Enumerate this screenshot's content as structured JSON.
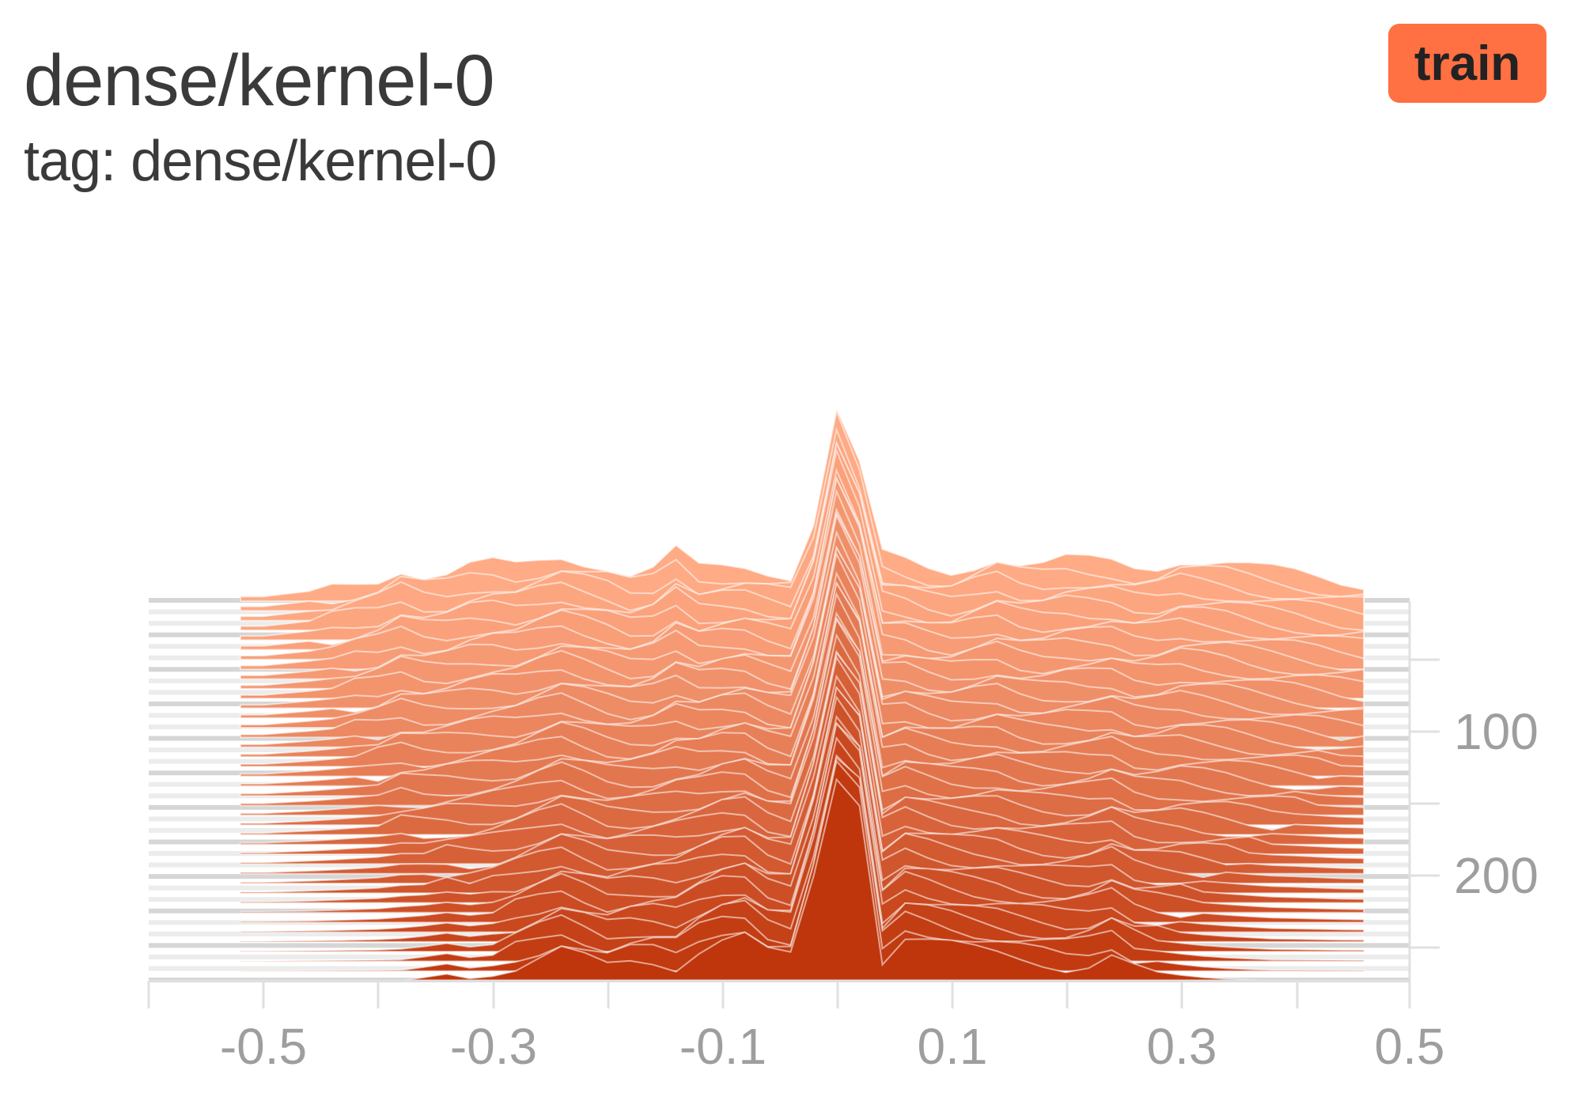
{
  "card": {
    "title": "dense/kernel-0",
    "tag": "tag: dense/kernel-0",
    "run_label": "train",
    "run_color": "#ff7043"
  },
  "chart_data": {
    "type": "area",
    "mode": "offset-histogram",
    "x_ticks": [
      "-0.5",
      "-0.3",
      "-0.1",
      "0.1",
      "0.3",
      "0.5"
    ],
    "y_ticks": [
      "100",
      "200"
    ],
    "xlim": [
      -0.6,
      0.5
    ],
    "step_range": [
      0,
      260
    ],
    "color_light": "#ffab85",
    "color_dark": "#bf360c",
    "series": [
      {
        "step": 0,
        "x": [
          -0.5,
          -0.45,
          -0.4,
          -0.38,
          -0.35,
          -0.31,
          -0.28,
          -0.24,
          -0.2,
          -0.17,
          -0.14,
          -0.12,
          -0.08,
          -0.04,
          -0.02,
          0.0,
          0.02,
          0.04,
          0.08,
          0.1,
          0.14,
          0.17,
          0.2,
          0.24,
          0.27,
          0.3,
          0.34,
          0.37,
          0.4,
          0.45
        ],
        "y": [
          0.02,
          0.05,
          0.1,
          0.15,
          0.1,
          0.17,
          0.15,
          0.2,
          0.16,
          0.1,
          0.22,
          0.14,
          0.15,
          0.12,
          0.35,
          0.85,
          0.6,
          0.2,
          0.14,
          0.13,
          0.2,
          0.15,
          0.18,
          0.17,
          0.14,
          0.19,
          0.17,
          0.14,
          0.12,
          0.08
        ]
      },
      {
        "step": 260,
        "x": [
          -0.38,
          -0.34,
          -0.31,
          -0.28,
          -0.24,
          -0.2,
          -0.17,
          -0.14,
          -0.11,
          -0.08,
          -0.06,
          -0.04,
          -0.02,
          0.0,
          0.02,
          0.04,
          0.06,
          0.09,
          0.12,
          0.15,
          0.18,
          0.21,
          0.24,
          0.26,
          0.29,
          0.33,
          0.38
        ],
        "y": [
          0.0,
          0.03,
          0.0,
          0.06,
          0.13,
          0.06,
          0.1,
          0.07,
          0.18,
          0.2,
          0.12,
          0.1,
          0.45,
          0.9,
          0.8,
          0.1,
          0.2,
          0.17,
          0.13,
          0.1,
          0.08,
          0.06,
          0.12,
          0.06,
          0.03,
          0.01,
          0.0
        ]
      }
    ]
  }
}
